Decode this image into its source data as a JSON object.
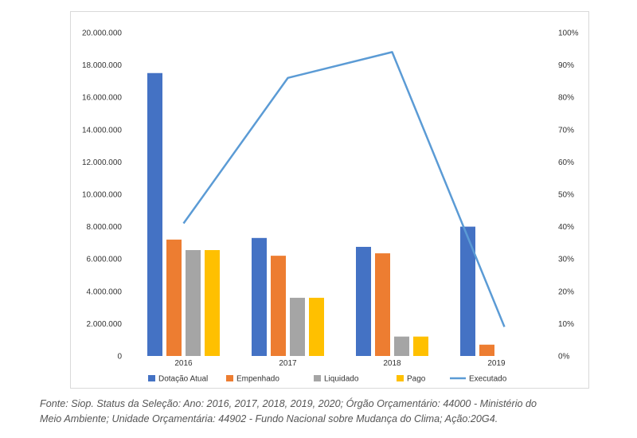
{
  "chart_data": {
    "type": "bar",
    "categories": [
      "2016",
      "2017",
      "2018",
      "2019"
    ],
    "series": [
      {
        "name": "Dotação Atual",
        "kind": "bar",
        "axis": "left",
        "color": "#4472C4",
        "values": [
          17500000,
          7300000,
          6750000,
          8000000
        ]
      },
      {
        "name": "Empenhado",
        "kind": "bar",
        "axis": "left",
        "color": "#ED7D31",
        "values": [
          7200000,
          6200000,
          6350000,
          700000
        ]
      },
      {
        "name": "Liquidado",
        "kind": "bar",
        "axis": "left",
        "color": "#A5A5A5",
        "values": [
          6550000,
          3600000,
          1200000,
          0
        ]
      },
      {
        "name": "Pago",
        "kind": "bar",
        "axis": "left",
        "color": "#FFC000",
        "values": [
          6550000,
          3600000,
          1200000,
          0
        ]
      },
      {
        "name": "Executado",
        "kind": "line",
        "axis": "right",
        "color": "#5B9BD5",
        "values": [
          41,
          86,
          94,
          9
        ]
      }
    ],
    "y_left": {
      "range": [
        0,
        20000000
      ],
      "ticks": [
        "0",
        "2.000.000",
        "4.000.000",
        "6.000.000",
        "8.000.000",
        "10.000.000",
        "12.000.000",
        "14.000.000",
        "16.000.000",
        "18.000.000",
        "20.000.000"
      ]
    },
    "y_right": {
      "range": [
        0,
        100
      ],
      "ticks": [
        "0%",
        "10%",
        "20%",
        "30%",
        "40%",
        "50%",
        "60%",
        "70%",
        "80%",
        "90%",
        "100%"
      ]
    },
    "legend_position": "bottom",
    "grid": false
  },
  "caption": {
    "line1": "Fonte: Siop. Status da Seleção: Ano: 2016, 2017, 2018, 2019, 2020; Órgão Orçamentário: 44000 - Ministério do",
    "line2": "Meio Ambiente; Unidade Orçamentária: 44902 - Fundo Nacional sobre Mudança do Clima; Ação:20G4."
  }
}
